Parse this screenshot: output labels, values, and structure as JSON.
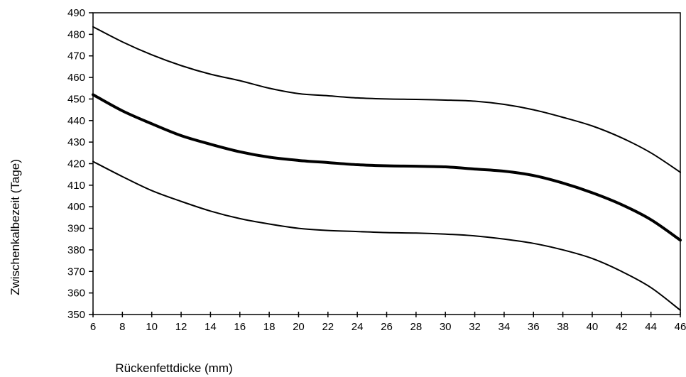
{
  "chart_data": {
    "type": "line",
    "title": "",
    "xlabel": "Rückenfettdicke (mm)",
    "ylabel": "Zwischenkalbezeit (Tage)",
    "xlim": [
      6,
      46
    ],
    "ylim": [
      350,
      490
    ],
    "x_ticks": [
      6,
      8,
      10,
      12,
      14,
      16,
      18,
      20,
      22,
      24,
      26,
      28,
      30,
      32,
      34,
      36,
      38,
      40,
      42,
      44,
      46
    ],
    "y_ticks": [
      350,
      360,
      370,
      380,
      390,
      400,
      410,
      420,
      430,
      440,
      450,
      460,
      470,
      480,
      490
    ],
    "grid": false,
    "legend": "none",
    "x": [
      6,
      8,
      10,
      12,
      14,
      16,
      18,
      20,
      22,
      24,
      26,
      28,
      30,
      32,
      34,
      36,
      38,
      40,
      42,
      44,
      46
    ],
    "series": [
      {
        "values": [
          483.5,
          476.5,
          470.5,
          465.5,
          461.5,
          458.5,
          455,
          452.5,
          451.5,
          450.5,
          450,
          449.8,
          449.5,
          449,
          447.5,
          445,
          441.5,
          437.5,
          432,
          425,
          416
        ],
        "color": "#000000",
        "width": 2
      },
      {
        "values": [
          452,
          444.5,
          438.5,
          433,
          429,
          425.5,
          423,
          421.5,
          420.5,
          419.5,
          419,
          418.8,
          418.5,
          417.5,
          416.5,
          414.5,
          411,
          406.5,
          401,
          394,
          384.5
        ],
        "color": "#000000",
        "width": 4
      },
      {
        "values": [
          421,
          414,
          407.5,
          402.5,
          398,
          394.5,
          392,
          390,
          389,
          388.5,
          388,
          387.8,
          387.3,
          386.5,
          385,
          383,
          380,
          376,
          370,
          362.5,
          352
        ],
        "color": "#000000",
        "width": 2
      }
    ]
  }
}
